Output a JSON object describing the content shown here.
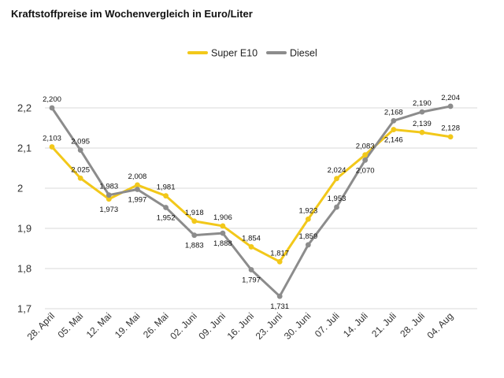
{
  "chart_data": {
    "type": "line",
    "title": "Kraftstoffpreise im Wochenvergleich in Euro/Liter",
    "xlabel": "",
    "ylabel": "",
    "ylim": [
      1.7,
      2.2
    ],
    "yticks": [
      "1,7",
      "1,8",
      "1,9",
      "2",
      "2,1",
      "2,2"
    ],
    "ytick_values": [
      1.7,
      1.8,
      1.9,
      2.0,
      2.1,
      2.2
    ],
    "grid": true,
    "legend_position": "top-center",
    "categories": [
      "28. April",
      "05. Mai",
      "12. Mai",
      "19. Mai",
      "26. Mai",
      "02. Juni",
      "09. Juni",
      "16. Juni",
      "23. Juni",
      "30. Juni",
      "07. Juli",
      "14. Juli",
      "21. Juli",
      "28. Juli",
      "04. Aug"
    ],
    "series": [
      {
        "name": "Super E10",
        "color": "#f2c81a",
        "values": [
          2.103,
          2.025,
          1.973,
          2.008,
          1.981,
          1.918,
          1.906,
          1.854,
          1.817,
          1.923,
          2.024,
          2.083,
          2.146,
          2.139,
          2.128
        ],
        "labels": [
          "2,103",
          "2,025",
          "1,973",
          "2,008",
          "1,981",
          "1,918",
          "1,906",
          "1,854",
          "1,817",
          "1,923",
          "2,024",
          "2,083",
          "2,146",
          "2,139",
          "2,128"
        ],
        "label_side": [
          "above",
          "above",
          "below",
          "above",
          "above",
          "above",
          "above",
          "above",
          "above",
          "above",
          "above",
          "above",
          "below",
          "above",
          "above"
        ]
      },
      {
        "name": "Diesel",
        "color": "#8c8c8c",
        "values": [
          2.2,
          2.095,
          1.983,
          1.997,
          1.952,
          1.883,
          1.888,
          1.797,
          1.731,
          1.859,
          1.953,
          2.07,
          2.168,
          2.19,
          2.204
        ],
        "labels": [
          "2,200",
          "2,095",
          "1,983",
          "1,997",
          "1,952",
          "1,883",
          "1,888",
          "1,797",
          "1,731",
          "1,859",
          "1,953",
          "2,070",
          "2,168",
          "2,190",
          "2,204"
        ],
        "label_side": [
          "above",
          "above",
          "above",
          "below",
          "below",
          "below",
          "below",
          "below",
          "below",
          "above",
          "above",
          "below",
          "above",
          "above",
          "above"
        ]
      }
    ]
  }
}
